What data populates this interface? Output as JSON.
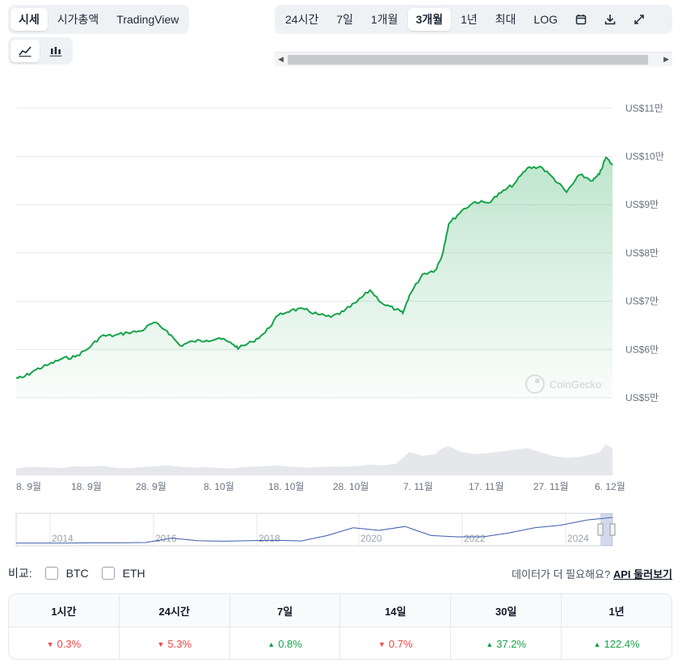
{
  "view_tabs": [
    {
      "label": "시세",
      "active": true
    },
    {
      "label": "시가총액",
      "active": false
    },
    {
      "label": "TradingView",
      "active": false
    }
  ],
  "range_tabs": [
    {
      "label": "24시간",
      "active": false
    },
    {
      "label": "7일",
      "active": false
    },
    {
      "label": "1개월",
      "active": false
    },
    {
      "label": "3개월",
      "active": true
    },
    {
      "label": "1년",
      "active": false
    },
    {
      "label": "최대",
      "active": false
    },
    {
      "label": "LOG",
      "active": false
    }
  ],
  "toolbar_icons": [
    "calendar-icon",
    "download-icon",
    "expand-icon"
  ],
  "chart_type_icons": [
    "line-chart-icon",
    "candlestick-chart-icon"
  ],
  "watermark": "CoinGecko",
  "chart_data": {
    "type": "area",
    "title": "",
    "xlabel": "",
    "ylabel": "",
    "ylim": [
      50000,
      110000
    ],
    "y_ticks": [
      "US$5만",
      "US$6만",
      "US$7만",
      "US$8만",
      "US$9만",
      "US$10만",
      "US$11만"
    ],
    "y_tick_values": [
      50000,
      60000,
      70000,
      80000,
      90000,
      100000,
      110000
    ],
    "x_ticks": [
      "8. 9월",
      "18. 9월",
      "28. 9월",
      "8. 10월",
      "18. 10월",
      "28. 10월",
      "7. 11월",
      "17. 11월",
      "27. 11월",
      "6. 12월"
    ],
    "x": [
      "2024-09-07",
      "2024-09-08",
      "2024-09-10",
      "2024-09-12",
      "2024-09-14",
      "2024-09-16",
      "2024-09-18",
      "2024-09-20",
      "2024-09-22",
      "2024-09-24",
      "2024-09-26",
      "2024-09-28",
      "2024-09-30",
      "2024-10-02",
      "2024-10-04",
      "2024-10-06",
      "2024-10-08",
      "2024-10-10",
      "2024-10-11",
      "2024-10-13",
      "2024-10-15",
      "2024-10-17",
      "2024-10-19",
      "2024-10-21",
      "2024-10-23",
      "2024-10-25",
      "2024-10-27",
      "2024-10-29",
      "2024-10-31",
      "2024-11-02",
      "2024-11-04",
      "2024-11-05",
      "2024-11-06",
      "2024-11-08",
      "2024-11-10",
      "2024-11-11",
      "2024-11-12",
      "2024-11-14",
      "2024-11-16",
      "2024-11-18",
      "2024-11-20",
      "2024-11-22",
      "2024-11-24",
      "2024-11-26",
      "2024-11-28",
      "2024-11-30",
      "2024-12-02",
      "2024-12-04",
      "2024-12-05",
      "2024-12-06",
      "2024-12-07"
    ],
    "series": [
      {
        "values": [
          54100,
          54200,
          55800,
          56900,
          58100,
          58500,
          60200,
          62800,
          62900,
          63500,
          63800,
          65600,
          63900,
          60800,
          61700,
          61900,
          62400,
          61100,
          60300,
          61600,
          63500,
          67100,
          68200,
          68300,
          67300,
          66700,
          67900,
          69900,
          72300,
          69400,
          68300,
          67500,
          71200,
          75600,
          76500,
          79500,
          86000,
          88800,
          90600,
          90400,
          92500,
          94300,
          97600,
          97900,
          95500,
          92600,
          96200,
          95000,
          96300,
          99800,
          98200
        ],
        "color": "#16a34a"
      }
    ],
    "volume": [
      0.18,
      0.2,
      0.22,
      0.2,
      0.19,
      0.24,
      0.22,
      0.25,
      0.2,
      0.18,
      0.21,
      0.23,
      0.26,
      0.22,
      0.2,
      0.21,
      0.19,
      0.18,
      0.2,
      0.22,
      0.24,
      0.25,
      0.22,
      0.2,
      0.21,
      0.23,
      0.22,
      0.24,
      0.28,
      0.26,
      0.3,
      0.45,
      0.6,
      0.5,
      0.55,
      0.7,
      0.75,
      0.6,
      0.55,
      0.58,
      0.62,
      0.66,
      0.7,
      0.6,
      0.5,
      0.45,
      0.48,
      0.55,
      0.6,
      0.8,
      0.7
    ]
  },
  "navigator": {
    "years": [
      "2014",
      "2016",
      "2018",
      "2020",
      "2022",
      "2024"
    ],
    "values": [
      0.01,
      0.01,
      0.01,
      0.02,
      0.02,
      0.03,
      0.2,
      0.1,
      0.08,
      0.1,
      0.12,
      0.09,
      0.3,
      0.6,
      0.5,
      0.65,
      0.3,
      0.25,
      0.25,
      0.4,
      0.6,
      0.7,
      0.9,
      1.0
    ]
  },
  "compare": {
    "label": "비교:",
    "options": [
      "BTC",
      "ETH"
    ]
  },
  "api_prompt": "데이터가 더 필요해요?",
  "api_link": "API 둘러보기",
  "stats": [
    {
      "period": "1시간",
      "change": "0.3%",
      "direction": "down"
    },
    {
      "period": "24시간",
      "change": "5.3%",
      "direction": "down"
    },
    {
      "period": "7일",
      "change": "0.8%",
      "direction": "up"
    },
    {
      "period": "14일",
      "change": "0.7%",
      "direction": "down"
    },
    {
      "period": "30일",
      "change": "37.2%",
      "direction": "up"
    },
    {
      "period": "1년",
      "change": "122.4%",
      "direction": "up"
    }
  ],
  "colors": {
    "up": "#16a34a",
    "down": "#ef4444",
    "line": "#16a34a",
    "navigator_line": "#3b5ba9"
  }
}
